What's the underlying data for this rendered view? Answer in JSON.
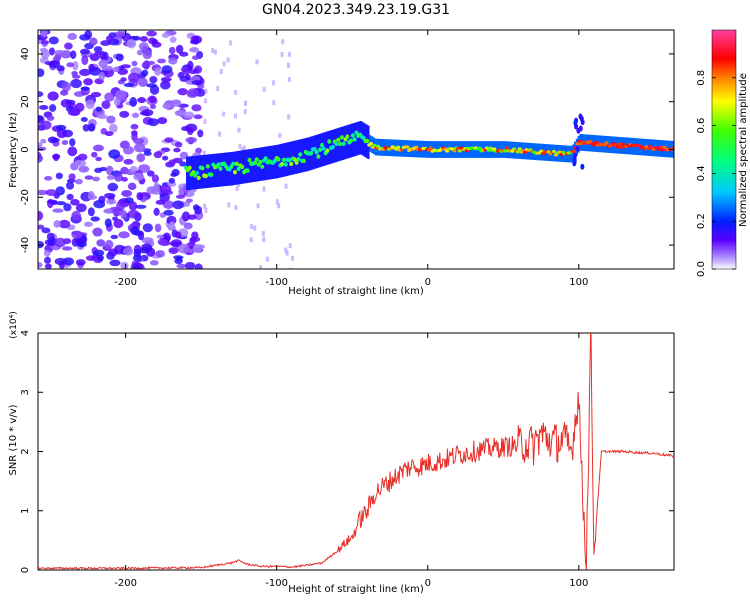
{
  "title": "GN04.2023.349.23.19.G31",
  "colors": {
    "snr_line": "#e8302a",
    "spectrum_base": "#6a00e0",
    "axis": "#000000"
  },
  "chart_data": [
    {
      "type": "heatmap",
      "xlabel": "Height of straight line (km)",
      "ylabel": "Frequency (Hz)",
      "xlim": [
        -258,
        163
      ],
      "ylim": [
        -50,
        50
      ],
      "xticks": [
        -200,
        -100,
        0,
        100
      ],
      "xtick_labels": [
        "-200",
        "-100",
        "0",
        "100"
      ],
      "yticks": [
        -40,
        -20,
        0,
        20,
        40
      ],
      "ytick_labels": [
        "-40",
        "-20",
        "0",
        "20",
        "40"
      ],
      "colorbar": {
        "label": "Normalized spectral amplitude",
        "range": [
          0,
          1
        ],
        "ticks": [
          0.0,
          0.2,
          0.4,
          0.6,
          0.8
        ],
        "tick_labels": [
          "0.0",
          "0.2",
          "0.4",
          "0.6",
          "0.8"
        ],
        "colormap": "rainbow (purple→blue→cyan→green→yellow→red→magenta)"
      },
      "ridge": {
        "description": "dominant frequency track",
        "points": [
          {
            "x": -160,
            "y": -10
          },
          {
            "x": -130,
            "y": -8
          },
          {
            "x": -100,
            "y": -5
          },
          {
            "x": -80,
            "y": -2
          },
          {
            "x": -60,
            "y": 2
          },
          {
            "x": -45,
            "y": 5
          },
          {
            "x": -35,
            "y": 1
          },
          {
            "x": 0,
            "y": 0
          },
          {
            "x": 50,
            "y": 0
          },
          {
            "x": 95,
            "y": -2
          },
          {
            "x": 100,
            "y": 3
          },
          {
            "x": 163,
            "y": 0
          }
        ]
      },
      "noise_region": {
        "x_from": -258,
        "x_to": -150
      }
    },
    {
      "type": "line",
      "xlabel": "Height of straight line (km)",
      "ylabel": "SNR (10 * v/v)",
      "y_multiplier": "(x10⁴)",
      "xlim": [
        -258,
        163
      ],
      "ylim": [
        0,
        4
      ],
      "xticks": [
        -200,
        -100,
        0,
        100
      ],
      "xtick_labels": [
        "-200",
        "-100",
        "0",
        "100"
      ],
      "yticks": [
        0,
        1,
        2,
        3,
        4
      ],
      "ytick_labels": [
        "0",
        "1",
        "2",
        "3",
        "4"
      ],
      "series": [
        {
          "x": [
            -258,
            -200,
            -150,
            -140,
            -130,
            -125,
            -120,
            -110,
            -100,
            -90,
            -80,
            -70,
            -60,
            -55,
            -50,
            -45,
            -40,
            -35,
            -30,
            -25,
            -20,
            -15,
            -10,
            -5,
            0,
            10,
            20,
            30,
            40,
            50,
            60,
            65,
            70,
            75,
            80,
            85,
            90,
            95,
            98,
            100,
            102,
            105,
            108,
            110,
            115,
            120,
            130,
            140,
            150,
            163
          ],
          "y": [
            0.03,
            0.03,
            0.04,
            0.08,
            0.12,
            0.16,
            0.1,
            0.06,
            0.06,
            0.05,
            0.08,
            0.12,
            0.32,
            0.45,
            0.55,
            0.85,
            1.0,
            1.3,
            1.4,
            1.5,
            1.6,
            1.7,
            1.75,
            1.75,
            1.8,
            1.85,
            1.95,
            2.0,
            2.05,
            2.08,
            2.1,
            2.15,
            2.1,
            2.3,
            2.2,
            2.15,
            2.2,
            2.0,
            2.6,
            3.0,
            1.5,
            0.2,
            4.0,
            0.3,
            2.0,
            2.0,
            2.0,
            1.98,
            1.97,
            1.92
          ]
        }
      ]
    }
  ]
}
